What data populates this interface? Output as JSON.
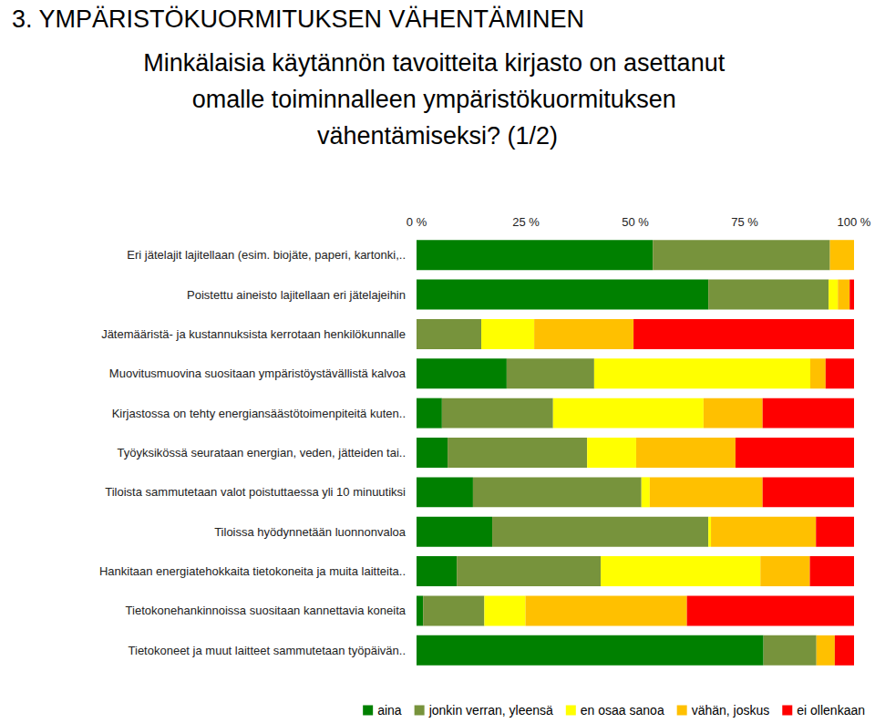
{
  "chart_data": {
    "type": "bar",
    "orientation": "horizontal",
    "stacked": true,
    "grid": false,
    "legend": "bottom",
    "data_labels": false,
    "title": "3. YMPÄRISTÖKUORMITUKSEN VÄHENTÄMINEN",
    "subtitle": "Minkälaisia käytännön tavoitteita kirjasto on asettanut omalle toiminnalleen ympäristökuormituksen vähentämiseksi? (1/2)",
    "categories": [
      "Eri jätelajit lajitellaan (esim. biojäte, paperi, kartonki,..",
      "Poistettu aineisto lajitellaan eri jätelajeihin",
      "Jätemääristä- ja kustannuksista kerrotaan henkilökunnalle",
      "Muovitusmuovina suositaan ympäristöystävällistä kalvoa",
      "Kirjastossa on tehty energiansäästötoimenpiteitä kuten..",
      "Työyksikössä seurataan energian, veden, jätteiden tai..",
      "Tiloista sammutetaan valot poistuttaessa yli 10 minuutiksi",
      "Tiloissa hyödynnetään luonnonvaloa",
      "Hankitaan energiatehokkaita tietokoneita ja muita laitteita..",
      "Tietokonehankinnoissa suositaan kannettavia koneita",
      "Tietokoneet ja muut laitteet sammutetaan työpäivän.."
    ],
    "series": [
      {
        "name": "aina",
        "color": "#008000",
        "values": [
          54,
          66.7,
          0,
          20.6,
          5.8,
          7.1,
          12.9,
          17.3,
          9.2,
          1.5,
          79.3
        ]
      },
      {
        "name": "jonkin verran, yleensä",
        "color": "#77933c",
        "values": [
          40.5,
          27.5,
          14.8,
          20,
          25.4,
          31.9,
          38.5,
          49.4,
          32.9,
          14,
          12.1
        ]
      },
      {
        "name": "en osaa sanoa",
        "color": "#ffff00",
        "values": [
          0,
          2.1,
          12.1,
          49.4,
          34.4,
          11.2,
          1.9,
          0.6,
          36.5,
          9.4,
          0
        ]
      },
      {
        "name": "vähän, joskus",
        "color": "#ffc000",
        "values": [
          5.5,
          2.7,
          22.7,
          3.5,
          13.5,
          22.7,
          25.8,
          24,
          11.3,
          36.9,
          4.2
        ]
      },
      {
        "name": "ei ollenkaan",
        "color": "#ff0000",
        "values": [
          0,
          1,
          50.4,
          6.5,
          20.9,
          27.1,
          20.9,
          8.7,
          10.1,
          38.2,
          4.4
        ]
      }
    ],
    "xlim": [
      0,
      100
    ],
    "xticks": [
      {
        "value": 0,
        "label": "0 %"
      },
      {
        "value": 25,
        "label": "25 %"
      },
      {
        "value": 50,
        "label": "50 %"
      },
      {
        "value": 75,
        "label": "75 %"
      },
      {
        "value": 100,
        "label": "100 %"
      }
    ]
  }
}
